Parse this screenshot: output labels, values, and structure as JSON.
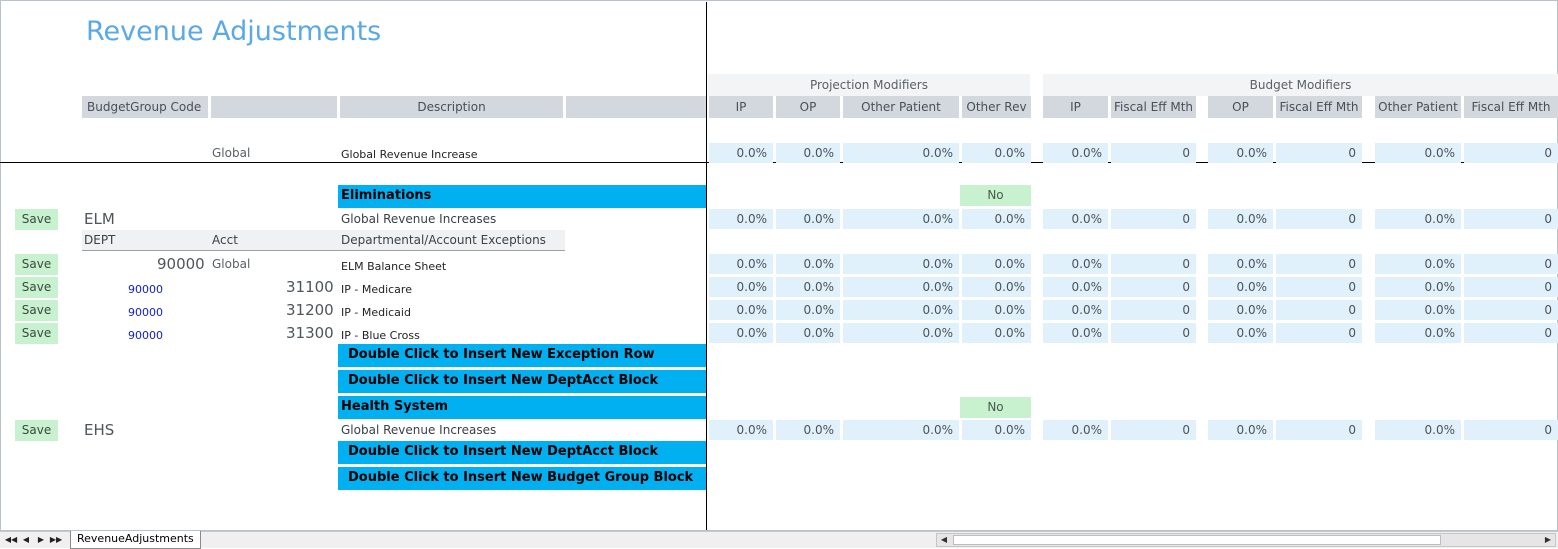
{
  "title": "Revenue Adjustments",
  "groups": {
    "projection": "Projection Modifiers",
    "budget": "Budget Modifiers"
  },
  "headers": {
    "budget_group_code": "BudgetGroup Code",
    "description": "Description",
    "proj": [
      "IP",
      "OP",
      "Other Patient",
      "Other Rev"
    ],
    "budget": [
      "IP",
      "Fiscal Eff Mth",
      "OP",
      "Fiscal Eff Mth",
      "Other Patient",
      "Fiscal Eff Mth"
    ]
  },
  "global_row": {
    "label": "Global",
    "description": "Global Revenue Increase",
    "values": [
      "0.0%",
      "0.0%",
      "0.0%",
      "0.0%",
      "0.0%",
      "0",
      "0.0%",
      "0",
      "0.0%",
      "0"
    ]
  },
  "sections": {
    "elim": {
      "name": "Eliminations",
      "flag": "No",
      "save": "Save",
      "code": "ELM",
      "description": "Global Revenue Increases",
      "values": [
        "0.0%",
        "0.0%",
        "0.0%",
        "0.0%",
        "0.0%",
        "0",
        "0.0%",
        "0",
        "0.0%",
        "0"
      ],
      "sub": {
        "dept": "DEPT",
        "acct": "Acct",
        "desc": "Departmental/Account Exceptions"
      },
      "rows": [
        {
          "save": "Save",
          "dept": "90000",
          "acct": "Global",
          "desc": "ELM Balance Sheet",
          "values": [
            "0.0%",
            "0.0%",
            "0.0%",
            "0.0%",
            "0.0%",
            "0",
            "0.0%",
            "0",
            "0.0%",
            "0"
          ]
        },
        {
          "save": "Save",
          "dept": "90000",
          "acct": "31100",
          "desc": "IP - Medicare",
          "values": [
            "0.0%",
            "0.0%",
            "0.0%",
            "0.0%",
            "0.0%",
            "0",
            "0.0%",
            "0",
            "0.0%",
            "0"
          ]
        },
        {
          "save": "Save",
          "dept": "90000",
          "acct": "31200",
          "desc": "IP - Medicaid",
          "values": [
            "0.0%",
            "0.0%",
            "0.0%",
            "0.0%",
            "0.0%",
            "0",
            "0.0%",
            "0",
            "0.0%",
            "0"
          ]
        },
        {
          "save": "Save",
          "dept": "90000",
          "acct": "31300",
          "desc": "IP - Blue Cross",
          "values": [
            "0.0%",
            "0.0%",
            "0.0%",
            "0.0%",
            "0.0%",
            "0",
            "0.0%",
            "0",
            "0.0%",
            "0"
          ]
        }
      ],
      "insert_exception": "Double Click to Insert New Exception Row",
      "insert_deptacct": "Double Click to Insert New DeptAcct Block"
    },
    "ehs": {
      "name": "Health System",
      "flag": "No",
      "save": "Save",
      "code": "EHS",
      "description": "Global Revenue Increases",
      "values": [
        "0.0%",
        "0.0%",
        "0.0%",
        "0.0%",
        "0.0%",
        "0",
        "0.0%",
        "0",
        "0.0%",
        "0"
      ],
      "insert_deptacct": "Double Click to Insert New DeptAcct Block",
      "insert_budget_group": "Double Click to Insert New Budget Group Block"
    }
  },
  "sheet_tab": "RevenueAdjustments"
}
